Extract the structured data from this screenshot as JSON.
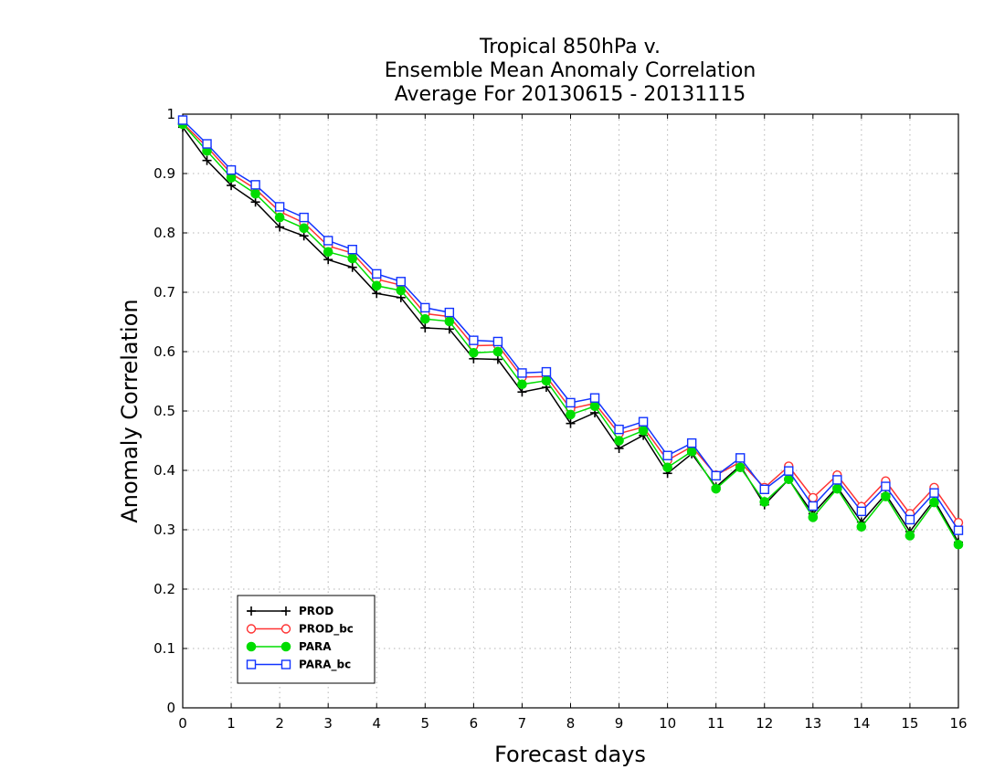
{
  "chart_data": {
    "type": "line",
    "title": [
      "Tropical 850hPa v.",
      "Ensemble Mean Anomaly Correlation",
      "Average For 20130615 - 20131115"
    ],
    "xlabel": "Forecast days",
    "ylabel": "Anomaly Correlation",
    "xlim": [
      0,
      16
    ],
    "ylim": [
      0,
      1
    ],
    "x_ticks": [
      "0",
      "1",
      "2",
      "3",
      "4",
      "5",
      "6",
      "7",
      "8",
      "9",
      "10",
      "11",
      "12",
      "13",
      "14",
      "15",
      "16"
    ],
    "y_ticks": [
      "0",
      "0.1",
      "0.2",
      "0.3",
      "0.4",
      "0.5",
      "0.6",
      "0.7",
      "0.8",
      "0.9",
      "1"
    ],
    "grid": true,
    "legend_position": "bottom-left",
    "x": [
      0,
      0.5,
      1,
      1.5,
      2,
      2.5,
      3,
      3.5,
      4,
      4.5,
      5,
      5.5,
      6,
      6.5,
      7,
      7.5,
      8,
      8.5,
      9,
      9.5,
      10,
      10.5,
      11,
      11.5,
      12,
      12.5,
      13,
      13.5,
      14,
      14.5,
      15,
      15.5,
      16
    ],
    "series": [
      {
        "name": "PROD",
        "color": "#000000",
        "marker": "plus",
        "values": [
          0.978,
          0.922,
          0.88,
          0.852,
          0.81,
          0.795,
          0.755,
          0.742,
          0.698,
          0.691,
          0.64,
          0.638,
          0.588,
          0.587,
          0.532,
          0.54,
          0.479,
          0.497,
          0.437,
          0.459,
          0.395,
          0.428,
          0.372,
          0.408,
          0.342,
          0.385,
          0.327,
          0.372,
          0.313,
          0.36,
          0.297,
          0.35,
          0.279
        ]
      },
      {
        "name": "PROD_bc",
        "color": "#ff3333",
        "marker": "open-circle",
        "values": [
          0.985,
          0.945,
          0.9,
          0.874,
          0.836,
          0.817,
          0.778,
          0.766,
          0.722,
          0.712,
          0.664,
          0.659,
          0.61,
          0.611,
          0.557,
          0.558,
          0.504,
          0.513,
          0.462,
          0.473,
          0.417,
          0.44,
          0.392,
          0.414,
          0.371,
          0.407,
          0.354,
          0.392,
          0.339,
          0.382,
          0.327,
          0.371,
          0.312
        ]
      },
      {
        "name": "PARA",
        "color": "#00dd00",
        "marker": "filled-circle",
        "values": [
          0.983,
          0.938,
          0.893,
          0.866,
          0.826,
          0.808,
          0.768,
          0.757,
          0.711,
          0.703,
          0.655,
          0.651,
          0.598,
          0.6,
          0.545,
          0.551,
          0.494,
          0.508,
          0.45,
          0.467,
          0.405,
          0.432,
          0.369,
          0.405,
          0.347,
          0.385,
          0.321,
          0.369,
          0.305,
          0.356,
          0.29,
          0.346,
          0.275
        ]
      },
      {
        "name": "PARA_bc",
        "color": "#1133ff",
        "marker": "open-square",
        "values": [
          0.99,
          0.95,
          0.906,
          0.881,
          0.844,
          0.826,
          0.787,
          0.772,
          0.731,
          0.718,
          0.674,
          0.666,
          0.619,
          0.617,
          0.564,
          0.566,
          0.514,
          0.522,
          0.469,
          0.482,
          0.425,
          0.446,
          0.391,
          0.421,
          0.368,
          0.399,
          0.34,
          0.384,
          0.331,
          0.373,
          0.317,
          0.362,
          0.299
        ]
      }
    ]
  }
}
